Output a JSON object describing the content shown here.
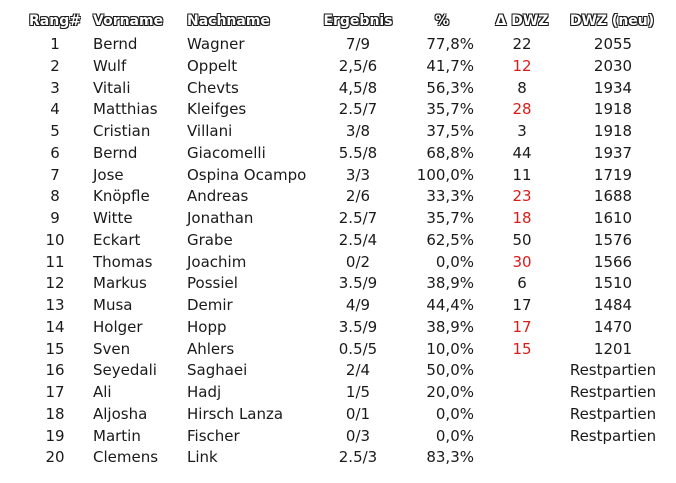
{
  "colors": {
    "text": "#1a1a1a",
    "negative": "#dd1a1a",
    "background": "#ffffff"
  },
  "headers": {
    "rank": "Rang#",
    "first": "Vorname",
    "last": "Nachname",
    "result": "Ergebnis",
    "pct": "%",
    "delta": "Δ DWZ",
    "dwz": "DWZ (neu)"
  },
  "rows": [
    {
      "rank": "1",
      "first": "Bernd",
      "last": "Wagner",
      "result": "7/9",
      "pct": "77,8%",
      "delta": "22",
      "delta_negative": false,
      "dwz": "2055"
    },
    {
      "rank": "2",
      "first": "Wulf",
      "last": "Oppelt",
      "result": "2,5/6",
      "pct": "41,7%",
      "delta": "12",
      "delta_negative": true,
      "dwz": "2030"
    },
    {
      "rank": "3",
      "first": "Vitali",
      "last": "Chevts",
      "result": "4,5/8",
      "pct": "56,3%",
      "delta": "8",
      "delta_negative": false,
      "dwz": "1934"
    },
    {
      "rank": "4",
      "first": "Matthias",
      "last": "Kleifges",
      "result": "2.5/7",
      "pct": "35,7%",
      "delta": "28",
      "delta_negative": true,
      "dwz": "1918"
    },
    {
      "rank": "5",
      "first": "Cristian",
      "last": "Villani",
      "result": "3/8",
      "pct": "37,5%",
      "delta": "3",
      "delta_negative": false,
      "dwz": "1918"
    },
    {
      "rank": "6",
      "first": "Bernd",
      "last": "Giacomelli",
      "result": "5.5/8",
      "pct": "68,8%",
      "delta": "44",
      "delta_negative": false,
      "dwz": "1937"
    },
    {
      "rank": "7",
      "first": "Jose",
      "last": "Ospina Ocampo",
      "result": "3/3",
      "pct": "100,0%",
      "delta": "11",
      "delta_negative": false,
      "dwz": "1719"
    },
    {
      "rank": "8",
      "first": "Knöpfle",
      "last": "Andreas",
      "result": "2/6",
      "pct": "33,3%",
      "delta": "23",
      "delta_negative": true,
      "dwz": "1688"
    },
    {
      "rank": "9",
      "first": "Witte",
      "last": "Jonathan",
      "result": "2.5/7",
      "pct": "35,7%",
      "delta": "18",
      "delta_negative": true,
      "dwz": "1610"
    },
    {
      "rank": "10",
      "first": "Eckart",
      "last": "Grabe",
      "result": "2.5/4",
      "pct": "62,5%",
      "delta": "50",
      "delta_negative": false,
      "dwz": "1576"
    },
    {
      "rank": "11",
      "first": "Thomas",
      "last": "Joachim",
      "result": "0/2",
      "pct": "0,0%",
      "delta": "30",
      "delta_negative": true,
      "dwz": "1566"
    },
    {
      "rank": "12",
      "first": "Markus",
      "last": "Possiel",
      "result": "3.5/9",
      "pct": "38,9%",
      "delta": "6",
      "delta_negative": false,
      "dwz": "1510"
    },
    {
      "rank": "13",
      "first": "Musa",
      "last": "Demir",
      "result": "4/9",
      "pct": "44,4%",
      "delta": "17",
      "delta_negative": false,
      "dwz": "1484"
    },
    {
      "rank": "14",
      "first": "Holger",
      "last": "Hopp",
      "result": "3.5/9",
      "pct": "38,9%",
      "delta": "17",
      "delta_negative": true,
      "dwz": "1470"
    },
    {
      "rank": "15",
      "first": "Sven",
      "last": "Ahlers",
      "result": "0.5/5",
      "pct": "10,0%",
      "delta": "15",
      "delta_negative": true,
      "dwz": "1201"
    },
    {
      "rank": "16",
      "first": "Seyedali",
      "last": "Saghaei",
      "result": "2/4",
      "pct": "50,0%",
      "delta": "",
      "delta_negative": false,
      "dwz": "Restpartien"
    },
    {
      "rank": "17",
      "first": "Ali",
      "last": "Hadj",
      "result": "1/5",
      "pct": "20,0%",
      "delta": "",
      "delta_negative": false,
      "dwz": "Restpartien"
    },
    {
      "rank": "18",
      "first": "Aljosha",
      "last": "Hirsch Lanza",
      "result": "0/1",
      "pct": "0,0%",
      "delta": "",
      "delta_negative": false,
      "dwz": "Restpartien"
    },
    {
      "rank": "19",
      "first": "Martin",
      "last": "Fischer",
      "result": "0/3",
      "pct": "0,0%",
      "delta": "",
      "delta_negative": false,
      "dwz": "Restpartien"
    },
    {
      "rank": "20",
      "first": "Clemens",
      "last": "Link",
      "result": "2.5/3",
      "pct": "83,3%",
      "delta": "",
      "delta_negative": false,
      "dwz": ""
    }
  ]
}
